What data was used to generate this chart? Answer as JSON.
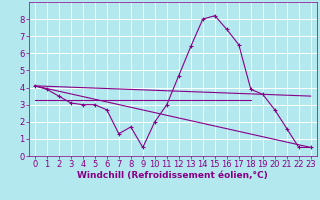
{
  "background_color": "#b3e8ee",
  "grid_color": "#ffffff",
  "line_color": "#880088",
  "marker_color": "#880088",
  "xlabel": "Windchill (Refroidissement éolien,°C)",
  "xlabel_fontsize": 6.5,
  "tick_fontsize": 6,
  "xlim": [
    -0.5,
    23.5
  ],
  "ylim": [
    0,
    9
  ],
  "xticks": [
    0,
    1,
    2,
    3,
    4,
    5,
    6,
    7,
    8,
    9,
    10,
    11,
    12,
    13,
    14,
    15,
    16,
    17,
    18,
    19,
    20,
    21,
    22,
    23
  ],
  "yticks": [
    0,
    1,
    2,
    3,
    4,
    5,
    6,
    7,
    8
  ],
  "series": [
    {
      "x": [
        0,
        1,
        2,
        3,
        4,
        5,
        6,
        7,
        8,
        9,
        10,
        11,
        12,
        13,
        14,
        15,
        16,
        17,
        18,
        19,
        20,
        21,
        22,
        23
      ],
      "y": [
        4.1,
        3.9,
        3.5,
        3.1,
        3.0,
        3.0,
        2.7,
        1.3,
        1.7,
        0.5,
        2.0,
        3.0,
        4.7,
        6.4,
        8.0,
        8.2,
        7.4,
        6.5,
        3.9,
        3.6,
        2.7,
        1.6,
        0.5,
        0.5
      ],
      "has_markers": true
    },
    {
      "x": [
        0,
        23
      ],
      "y": [
        4.1,
        0.5
      ],
      "has_markers": false
    },
    {
      "x": [
        0,
        18
      ],
      "y": [
        3.3,
        3.3
      ],
      "has_markers": false
    },
    {
      "x": [
        0,
        23
      ],
      "y": [
        4.1,
        3.5
      ],
      "has_markers": false
    }
  ]
}
